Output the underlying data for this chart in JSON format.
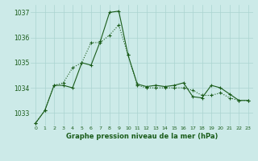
{
  "line1_x": [
    0,
    1,
    2,
    3,
    4,
    5,
    6,
    7,
    8,
    9,
    10,
    11,
    12,
    13,
    14,
    15,
    16,
    17,
    18,
    19,
    20,
    21,
    22,
    23
  ],
  "line1_y": [
    1032.6,
    1033.1,
    1034.1,
    1034.1,
    1034.0,
    1035.0,
    1034.9,
    1035.85,
    1037.0,
    1037.05,
    1035.3,
    1034.15,
    1034.05,
    1034.1,
    1034.05,
    1034.1,
    1034.2,
    1033.65,
    1033.6,
    1034.1,
    1034.0,
    1033.75,
    1033.5,
    1033.5
  ],
  "line2_x": [
    0,
    1,
    2,
    3,
    4,
    5,
    6,
    7,
    8,
    9,
    10,
    11,
    12,
    13,
    14,
    15,
    16,
    17,
    18,
    19,
    20,
    21,
    22,
    23
  ],
  "line2_y": [
    1032.6,
    1033.1,
    1034.1,
    1034.2,
    1034.8,
    1035.0,
    1035.8,
    1035.8,
    1036.1,
    1036.5,
    1035.3,
    1034.1,
    1034.0,
    1034.0,
    1034.0,
    1034.0,
    1034.0,
    1033.9,
    1033.7,
    1033.7,
    1033.8,
    1033.6,
    1033.5,
    1033.5
  ],
  "line_color": "#1a5c1a",
  "bg_color": "#cceae8",
  "grid_color": "#aad4d0",
  "xlabel": "Graphe pression niveau de la mer (hPa)",
  "ylim": [
    1032.5,
    1037.3
  ],
  "yticks": [
    1033,
    1034,
    1035,
    1036,
    1037
  ],
  "xticks": [
    0,
    1,
    2,
    3,
    4,
    5,
    6,
    7,
    8,
    9,
    10,
    11,
    12,
    13,
    14,
    15,
    16,
    17,
    18,
    19,
    20,
    21,
    22,
    23
  ]
}
